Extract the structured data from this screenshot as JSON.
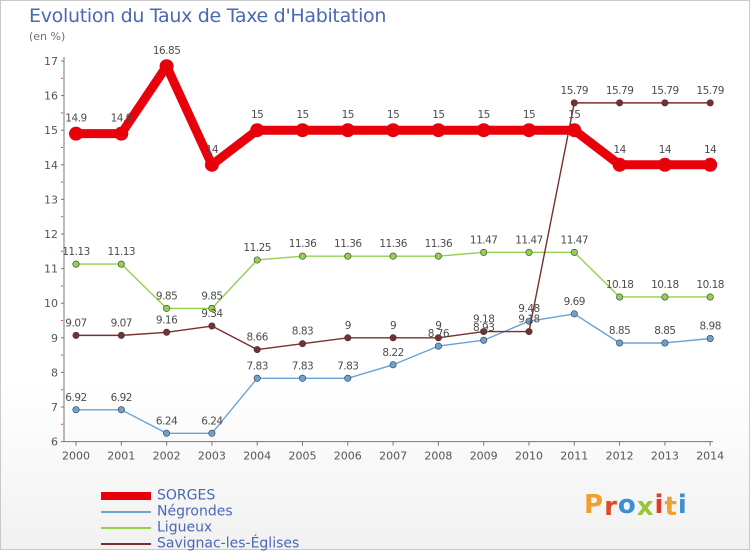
{
  "chart_data": {
    "type": "line",
    "title": "Evolution du Taux de Taxe d'Habitation",
    "unit_label": "(en %)",
    "x": [
      2000,
      2001,
      2002,
      2003,
      2004,
      2005,
      2006,
      2007,
      2008,
      2009,
      2010,
      2011,
      2012,
      2013,
      2014
    ],
    "x_tick_labels": [
      "2000",
      "2001",
      "2002",
      "2003",
      "2004",
      "2005",
      "2006",
      "2007",
      "2008",
      "2009",
      "2010",
      "2011",
      "2012",
      "2013",
      "2014"
    ],
    "ylim": [
      6,
      17
    ],
    "y_ticks": [
      6,
      7,
      8,
      9,
      10,
      11,
      12,
      13,
      14,
      15,
      16,
      17
    ],
    "grid": false,
    "legend_position": "bottom-left",
    "series": [
      {
        "name": "SORGES",
        "color": "#e8000b",
        "values": [
          14.9,
          14.9,
          16.85,
          14,
          15,
          15,
          15,
          15,
          15,
          15,
          15,
          15,
          14,
          14,
          14
        ],
        "labels": [
          "14.9",
          "14.9",
          "16.85",
          "14",
          "15",
          "15",
          "15",
          "15",
          "15",
          "15",
          "15",
          "15",
          "14",
          "14",
          "14"
        ]
      },
      {
        "name": "Négrondes",
        "color": "#6aa2d4",
        "values": [
          6.92,
          6.92,
          6.24,
          6.24,
          7.83,
          7.83,
          7.83,
          8.22,
          8.76,
          8.93,
          9.48,
          9.69,
          8.85,
          8.85,
          8.98
        ],
        "labels": [
          "6.92",
          "6.92",
          "6.24",
          "6.24",
          "7.83",
          "7.83",
          "7.83",
          "8.22",
          "8.76",
          "8.93",
          "9.48",
          "9.69",
          "8.85",
          "8.85",
          "8.98"
        ]
      },
      {
        "name": "Ligueux",
        "color": "#92d050",
        "values": [
          11.13,
          11.13,
          9.85,
          9.85,
          11.25,
          11.36,
          11.36,
          11.36,
          11.36,
          11.47,
          11.47,
          11.47,
          10.18,
          10.18,
          10.18
        ],
        "labels": [
          "11.13",
          "11.13",
          "9.85",
          "9.85",
          "11.25",
          "11.36",
          "11.36",
          "11.36",
          "11.36",
          "11.47",
          "11.47",
          "11.47",
          "10.18",
          "10.18",
          "10.18"
        ]
      },
      {
        "name": "Savignac-les-Églises",
        "color": "#7b2e2e",
        "values": [
          9.07,
          9.07,
          9.16,
          9.34,
          8.66,
          8.83,
          9,
          9,
          9,
          9.18,
          9.18,
          15.79,
          15.79,
          15.79,
          15.79
        ],
        "labels": [
          "9.07",
          "9.07",
          "9.16",
          "9.34",
          "8.66",
          "8.83",
          "9",
          "9",
          "9",
          "9.18",
          "9.18",
          "15.79",
          "15.79",
          "15.79",
          "15.79"
        ]
      }
    ]
  },
  "brand": {
    "letters": [
      "P",
      "r",
      "o",
      "x",
      "i",
      "t",
      "i"
    ]
  }
}
